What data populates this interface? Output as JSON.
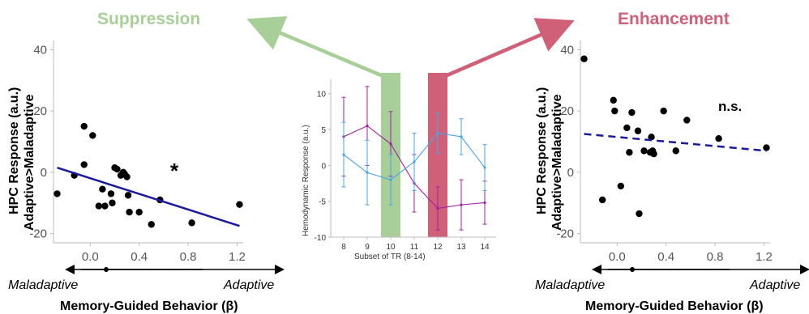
{
  "header": {
    "left_title": "Suppression",
    "right_title": "Enhancement",
    "left_color": "#a8cf98",
    "right_color": "#d06078"
  },
  "chart_data": [
    {
      "type": "scatter",
      "panel": "left",
      "ylabel_line1": "HPC Response (a.u.)",
      "ylabel_line2": "Adaptive>Maladaptive",
      "xlabel": "Memory-Guided Behavior (β)",
      "x_left_text": "Maladaptive",
      "x_right_text": "Adaptive",
      "annotation": "*",
      "xlim": [
        -0.3,
        1.25
      ],
      "ylim": [
        -23,
        43
      ],
      "xticks": [
        "0.0",
        "0.4",
        "0.8",
        "1.2"
      ],
      "xtick_values": [
        0.0,
        0.4,
        0.8,
        1.2
      ],
      "yticks": [
        "40",
        "20",
        "0",
        "-20"
      ],
      "ytick_values": [
        40,
        20,
        0,
        -20
      ],
      "points": [
        [
          -0.27,
          -7
        ],
        [
          -0.13,
          -1
        ],
        [
          -0.05,
          15
        ],
        [
          -0.05,
          2.5
        ],
        [
          0.02,
          12
        ],
        [
          0.07,
          -11
        ],
        [
          0.1,
          -5.5
        ],
        [
          0.12,
          -11
        ],
        [
          0.17,
          -7
        ],
        [
          0.18,
          -10
        ],
        [
          0.2,
          1.5
        ],
        [
          0.22,
          1
        ],
        [
          0.25,
          -1
        ],
        [
          0.27,
          0
        ],
        [
          0.28,
          -0.5
        ],
        [
          0.3,
          -1.5
        ],
        [
          0.31,
          -7.5
        ],
        [
          0.32,
          -13
        ],
        [
          0.4,
          -13
        ],
        [
          0.5,
          -17
        ],
        [
          0.57,
          -9
        ],
        [
          0.83,
          -16.5
        ],
        [
          1.22,
          -10.5
        ]
      ],
      "fit": {
        "x": [
          -0.27,
          1.22
        ],
        "y": [
          1.5,
          -17.5
        ],
        "style": "solid",
        "color": "#1a1a9c"
      }
    },
    {
      "type": "line",
      "panel": "center",
      "xlabel": "Subset of TR (8-14)",
      "ylabel": "Hemodynamic Response (a.u.)",
      "x": [
        8,
        9,
        10,
        11,
        12,
        13,
        14
      ],
      "ylim": [
        -10,
        12
      ],
      "yticks": [
        "10",
        "5",
        "0",
        "-5",
        "-10"
      ],
      "ytick_values": [
        10,
        5,
        0,
        -5,
        -10
      ],
      "xticks": [
        "8",
        "9",
        "10",
        "11",
        "12",
        "13",
        "14"
      ],
      "highlights": [
        {
          "x": 10,
          "color": "#a8cf98"
        },
        {
          "x": 12,
          "color": "#d06078"
        }
      ],
      "series": [
        {
          "color": "#a020a0",
          "values": [
            4,
            5.5,
            3,
            -2.5,
            -6,
            -5.5,
            -5.2
          ],
          "errors": [
            5.5,
            5.5,
            4.5,
            4.0,
            3.0,
            3.5,
            3.0
          ]
        },
        {
          "color": "#4aa3e8",
          "values": [
            1.5,
            -1,
            -2,
            0.5,
            4.5,
            4,
            -0.3
          ],
          "errors": [
            4.5,
            4.5,
            3.5,
            4.0,
            2.8,
            2.5,
            3.2
          ]
        }
      ]
    },
    {
      "type": "scatter",
      "panel": "right",
      "ylabel_line1": "HPC Response (a.u.)",
      "ylabel_line2": "Adaptive>Maladaptive",
      "xlabel": "Memory-Guided Behavior (β)",
      "x_left_text": "Maladaptive",
      "x_right_text": "Adaptive",
      "annotation": "n.s.",
      "xlim": [
        -0.3,
        1.25
      ],
      "ylim": [
        -23,
        43
      ],
      "xticks": [
        "0.0",
        "0.4",
        "0.8",
        "1.2"
      ],
      "xtick_values": [
        0.0,
        0.4,
        0.8,
        1.2
      ],
      "yticks": [
        "40",
        "20",
        "0",
        "-20"
      ],
      "ytick_values": [
        40,
        20,
        0,
        -20
      ],
      "points": [
        [
          -0.27,
          37
        ],
        [
          -0.12,
          -9
        ],
        [
          -0.03,
          23.5
        ],
        [
          -0.02,
          20
        ],
        [
          0.03,
          -4.5
        ],
        [
          0.08,
          14.5
        ],
        [
          0.1,
          6.5
        ],
        [
          0.12,
          19.5
        ],
        [
          0.17,
          13.5
        ],
        [
          0.18,
          -13.5
        ],
        [
          0.22,
          7
        ],
        [
          0.27,
          6.5
        ],
        [
          0.28,
          11.5
        ],
        [
          0.29,
          7
        ],
        [
          0.3,
          6
        ],
        [
          0.38,
          20
        ],
        [
          0.48,
          7
        ],
        [
          0.57,
          17
        ],
        [
          0.83,
          11
        ],
        [
          1.22,
          8
        ]
      ],
      "fit": {
        "x": [
          -0.27,
          1.22
        ],
        "y": [
          12.5,
          7
        ],
        "style": "dashed",
        "color": "#1a1a9c"
      }
    }
  ]
}
